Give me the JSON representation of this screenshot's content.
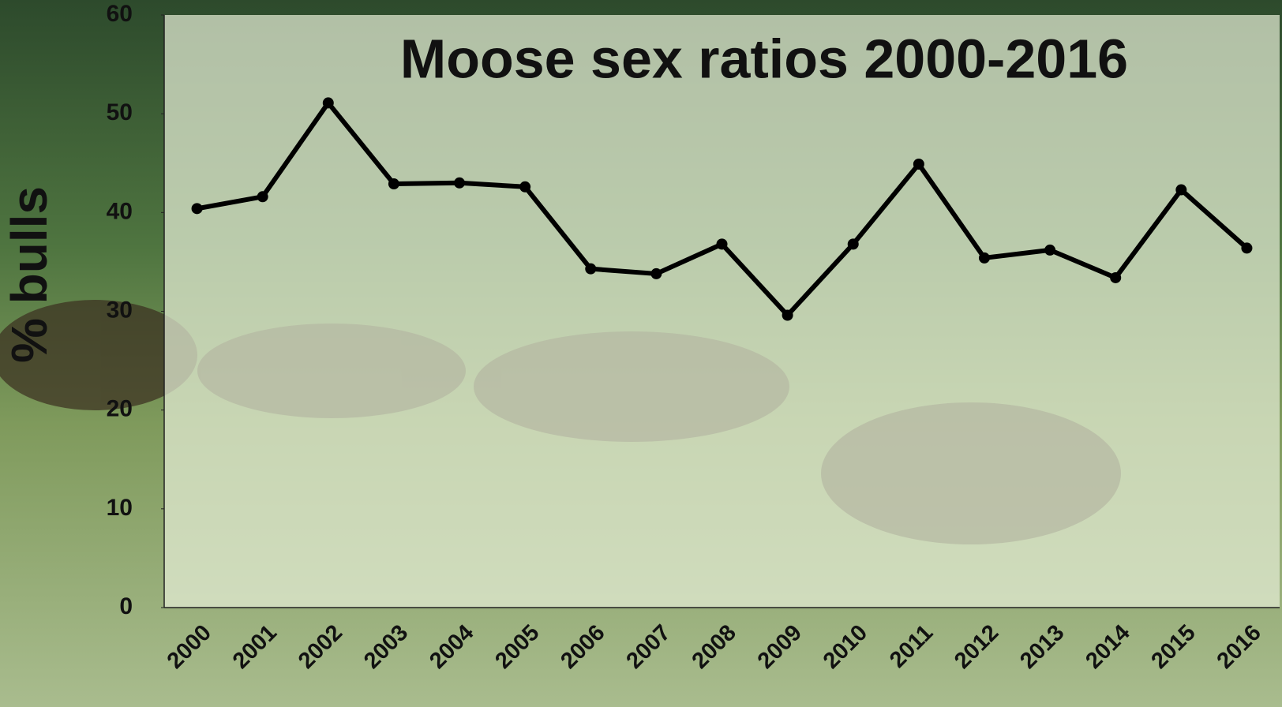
{
  "chart_data": {
    "type": "line",
    "title": "Moose sex ratios 2000-2016",
    "y_label": "% bulls",
    "categories": [
      "2000",
      "2001",
      "2002",
      "2003",
      "2004",
      "2005",
      "2006",
      "2007",
      "2008",
      "2009",
      "2010",
      "2011",
      "2012",
      "2013",
      "2014",
      "2015",
      "2016"
    ],
    "series": [
      {
        "name": "% bulls",
        "color": "#000000",
        "values": [
          40.4,
          41.6,
          51.1,
          42.9,
          43.0,
          42.6,
          34.3,
          33.8,
          36.8,
          29.6,
          36.8,
          44.9,
          35.4,
          36.2,
          33.4,
          42.3,
          36.4
        ]
      }
    ],
    "ylim": [
      0,
      60
    ],
    "yticks": [
      0,
      10,
      20,
      30,
      40,
      50,
      60
    ],
    "grid": false
  }
}
